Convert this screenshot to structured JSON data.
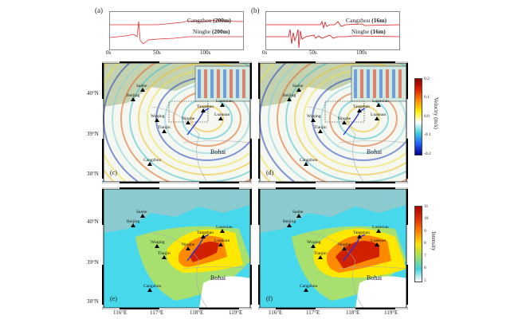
{
  "traces": [
    {
      "panel": "(a)",
      "top_station": "Cangzhou",
      "bottom_station": "Ninghe",
      "depth": "(200m)",
      "xticks": [
        "0s",
        "50s",
        "100s"
      ],
      "color": "#e03030"
    },
    {
      "panel": "(b)",
      "top_station": "Cangzhou",
      "bottom_station": "Ninghe",
      "depth": "(16m)",
      "xticks": [
        "0s",
        "50s",
        "100s"
      ],
      "color": "#e01010"
    }
  ],
  "maps": [
    {
      "panel": "(c)",
      "type": "velocity"
    },
    {
      "panel": "(d)",
      "type": "velocity"
    },
    {
      "panel": "(e)",
      "type": "intensity"
    },
    {
      "panel": "(f)",
      "type": "intensity"
    }
  ],
  "stations": [
    "Beijing",
    "Sanhe",
    "Wuqing",
    "Tianjin",
    "Ninghe",
    "Tangshan",
    "Luanxian",
    "Luannan",
    "Cangzhou"
  ],
  "sea_label": "Bohai",
  "lat_ticks": [
    "40°N",
    "39°N",
    "38°N"
  ],
  "lon_ticks": [
    "116°E",
    "117°E",
    "118°E",
    "119°E"
  ],
  "velocity_colorbar": {
    "title": "Velocity (m/s)",
    "ticks": [
      "0.2",
      "0.1",
      "0.0",
      "-0.1",
      "-0.2"
    ],
    "range": [
      -0.2,
      0.2
    ]
  },
  "intensity_colorbar": {
    "title": "Intensity",
    "ticks": [
      "11",
      "10",
      "9",
      "8",
      "7",
      "6",
      "5"
    ],
    "range": [
      5,
      11
    ]
  },
  "fault_color": "#2233dd"
}
